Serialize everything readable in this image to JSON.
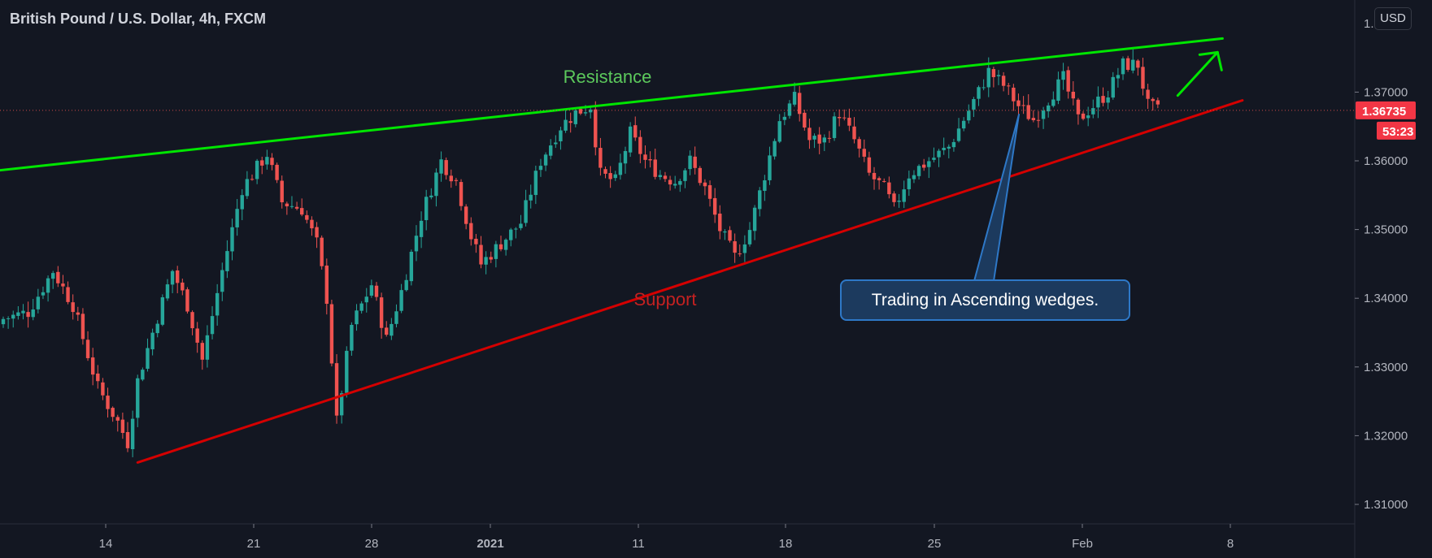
{
  "header": {
    "title": "British Pound / U.S. Dollar, 4h, FXCM"
  },
  "price_scale": {
    "currency_label": "USD"
  },
  "chart_data": {
    "type": "candlestick",
    "title": "British Pound / U.S. Dollar, 4h, FXCM",
    "instrument": "GBPUSD",
    "timeframe": "4h",
    "source": "FXCM",
    "x_ticks": [
      "14",
      "21",
      "28",
      "2021",
      "11",
      "18",
      "25",
      "Feb",
      "8"
    ],
    "y_ticks": [
      "1.31000",
      "1.32000",
      "1.33000",
      "1.34000",
      "1.35000",
      "1.36000",
      "1.37000"
    ],
    "ylim": [
      1.3055,
      1.3825
    ],
    "last_price": "1.36735",
    "last_price_value": 1.36735,
    "countdown": "53:23",
    "grid": false,
    "colors": {
      "up": "#26a69a",
      "down": "#ef5350",
      "background": "#131722",
      "text": "#d1d4dc"
    },
    "anchors": [
      [
        0,
        1.337
      ],
      [
        5,
        1.338
      ],
      [
        10,
        1.344
      ],
      [
        14,
        1.339
      ],
      [
        19,
        1.327
      ],
      [
        23,
        1.322
      ],
      [
        25,
        1.319
      ],
      [
        27,
        1.328
      ],
      [
        30,
        1.335
      ],
      [
        34,
        1.344
      ],
      [
        37,
        1.339
      ],
      [
        40,
        1.331
      ],
      [
        44,
        1.344
      ],
      [
        48,
        1.356
      ],
      [
        53,
        1.361
      ],
      [
        56,
        1.354
      ],
      [
        60,
        1.353
      ],
      [
        63,
        1.348
      ],
      [
        65,
        1.34
      ],
      [
        67,
        1.322
      ],
      [
        70,
        1.336
      ],
      [
        74,
        1.342
      ],
      [
        77,
        1.334
      ],
      [
        80,
        1.341
      ],
      [
        84,
        1.352
      ],
      [
        88,
        1.36
      ],
      [
        91,
        1.357
      ],
      [
        94,
        1.349
      ],
      [
        96,
        1.345
      ],
      [
        100,
        1.348
      ],
      [
        104,
        1.351
      ],
      [
        108,
        1.36
      ],
      [
        112,
        1.365
      ],
      [
        115,
        1.367
      ],
      [
        118,
        1.368
      ],
      [
        120,
        1.358
      ],
      [
        123,
        1.357
      ],
      [
        126,
        1.364
      ],
      [
        129,
        1.36
      ],
      [
        132,
        1.358
      ],
      [
        135,
        1.357
      ],
      [
        138,
        1.36
      ],
      [
        141,
        1.356
      ],
      [
        144,
        1.35
      ],
      [
        147,
        1.346
      ],
      [
        150,
        1.35
      ],
      [
        153,
        1.358
      ],
      [
        156,
        1.366
      ],
      [
        159,
        1.369
      ],
      [
        162,
        1.363
      ],
      [
        165,
        1.363
      ],
      [
        168,
        1.367
      ],
      [
        171,
        1.363
      ],
      [
        174,
        1.358
      ],
      [
        177,
        1.356
      ],
      [
        179,
        1.353
      ],
      [
        182,
        1.358
      ],
      [
        186,
        1.36
      ],
      [
        190,
        1.362
      ],
      [
        193,
        1.366
      ],
      [
        196,
        1.37
      ],
      [
        198,
        1.373
      ],
      [
        201,
        1.371
      ],
      [
        204,
        1.368
      ],
      [
        207,
        1.366
      ],
      [
        210,
        1.369
      ],
      [
        213,
        1.372
      ],
      [
        216,
        1.366
      ],
      [
        219,
        1.368
      ],
      [
        222,
        1.37
      ],
      [
        225,
        1.374
      ],
      [
        228,
        1.374
      ],
      [
        230,
        1.368
      ],
      [
        232,
        1.3673
      ]
    ],
    "trendlines": [
      {
        "name": "Resistance",
        "color": "#00e600",
        "from": [
          -1,
          1.3586
        ],
        "to": [
          245,
          1.3778
        ]
      },
      {
        "name": "Support",
        "color": "#d40000",
        "from": [
          27,
          1.3161
        ],
        "to": [
          249,
          1.3688
        ]
      }
    ],
    "annotations": [
      {
        "text": "Resistance",
        "color": "#5cc95c"
      },
      {
        "text": "Support",
        "color": "#c42121"
      },
      {
        "text": "Trading in Ascending wedges.",
        "style": "callout"
      }
    ],
    "arrow": {
      "color": "#00e600",
      "direction": "up",
      "from": [
        236,
        1.3695
      ],
      "to": [
        244,
        1.3758
      ]
    }
  }
}
